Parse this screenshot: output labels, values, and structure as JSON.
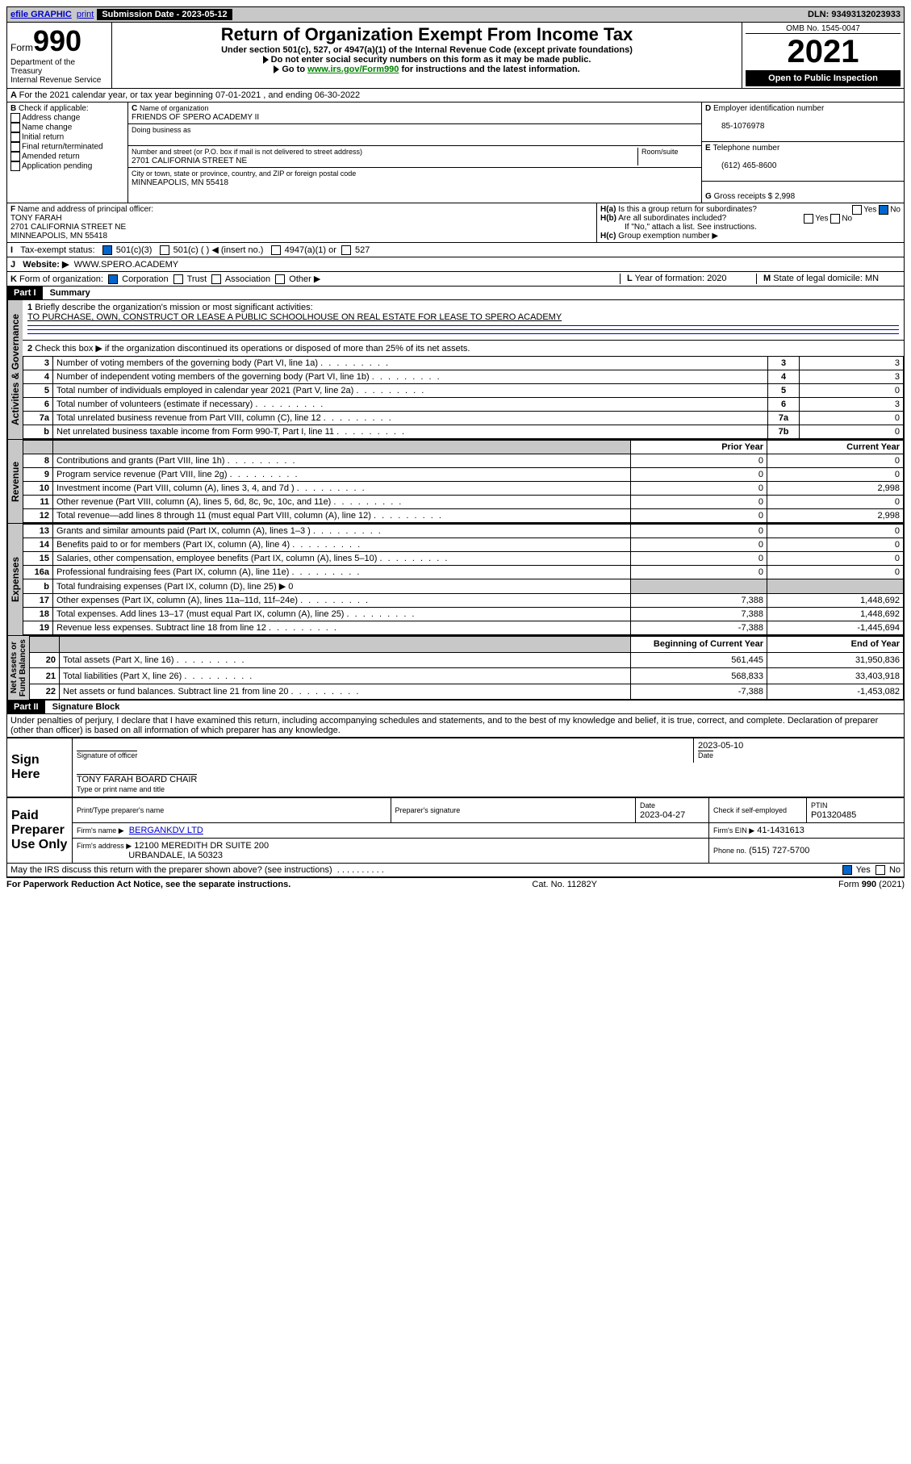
{
  "topbar": {
    "efile": "efile GRAPHIC",
    "print": "print",
    "subdate_label": "Submission Date - 2023-05-12",
    "dln_label": "DLN: 93493132023933"
  },
  "header": {
    "form": "990",
    "form_prefix": "Form",
    "title": "Return of Organization Exempt From Income Tax",
    "subtitle": "Under section 501(c), 527, or 4947(a)(1) of the Internal Revenue Code (except private foundations)",
    "note1": "Do not enter social security numbers on this form as it may be made public.",
    "note2_pre": "Go to ",
    "note2_link": "www.irs.gov/Form990",
    "note2_post": " for instructions and the latest information.",
    "dept": "Department of the Treasury\nInternal Revenue Service",
    "omb": "OMB No. 1545-0047",
    "year": "2021",
    "open": "Open to Public Inspection"
  },
  "A": {
    "text": "For the 2021 calendar year, or tax year beginning 07-01-2021   , and ending 06-30-2022"
  },
  "B": {
    "label": "Check if applicable:",
    "opts": [
      "Address change",
      "Name change",
      "Initial return",
      "Final return/terminated",
      "Amended return",
      "Application pending"
    ]
  },
  "C": {
    "name_label": "Name of organization",
    "name": "FRIENDS OF SPERO ACADEMY II",
    "dba_label": "Doing business as",
    "addr_label": "Number and street (or P.O. box if mail is not delivered to street address)",
    "room_label": "Room/suite",
    "addr": "2701 CALIFORNIA STREET NE",
    "city_label": "City or town, state or province, country, and ZIP or foreign postal code",
    "city": "MINNEAPOLIS, MN  55418"
  },
  "D": {
    "label": "Employer identification number",
    "val": "85-1076978"
  },
  "E": {
    "label": "Telephone number",
    "val": "(612) 465-8600"
  },
  "G": {
    "label": "Gross receipts $",
    "val": "2,998"
  },
  "F": {
    "label": "Name and address of principal officer:",
    "name": "TONY FARAH",
    "addr1": "2701 CALIFORNIA STREET NE",
    "addr2": "MINNEAPOLIS, MN  55418"
  },
  "H": {
    "a": "Is this a group return for subordinates?",
    "b": "Are all subordinates included?",
    "b2": "If \"No,\" attach a list. See instructions.",
    "c": "Group exemption number ▶"
  },
  "I": {
    "label": "Tax-exempt status:",
    "o1": "501(c)(3)",
    "o2": "501(c) (  ) ◀ (insert no.)",
    "o3": "4947(a)(1) or",
    "o4": "527"
  },
  "J": {
    "label": "Website: ▶",
    "val": "WWW.SPERO.ACADEMY"
  },
  "K": {
    "label": "Form of organization:",
    "o1": "Corporation",
    "o2": "Trust",
    "o3": "Association",
    "o4": "Other ▶"
  },
  "L": {
    "label": "Year of formation:",
    "val": "2020"
  },
  "M": {
    "label": "State of legal domicile:",
    "val": "MN"
  },
  "part1": {
    "title": "Summary",
    "q1": "Briefly describe the organization's mission or most significant activities:",
    "a1": "TO PURCHASE, OWN, CONSTRUCT OR LEASE A PUBLIC SCHOOLHOUSE ON REAL ESTATE FOR LEASE TO SPERO ACADEMY",
    "q2": "Check this box ▶        if the organization discontinued its operations or disposed of more than 25% of its net assets.",
    "rows_top": [
      {
        "n": "3",
        "t": "Number of voting members of the governing body (Part VI, line 1a)",
        "box": "3",
        "v": "3"
      },
      {
        "n": "4",
        "t": "Number of independent voting members of the governing body (Part VI, line 1b)",
        "box": "4",
        "v": "3"
      },
      {
        "n": "5",
        "t": "Total number of individuals employed in calendar year 2021 (Part V, line 2a)",
        "box": "5",
        "v": "0"
      },
      {
        "n": "6",
        "t": "Total number of volunteers (estimate if necessary)",
        "box": "6",
        "v": "3"
      },
      {
        "n": "7a",
        "t": "Total unrelated business revenue from Part VIII, column (C), line 12",
        "box": "7a",
        "v": "0"
      },
      {
        "n": "b",
        "t": "Net unrelated business taxable income from Form 990-T, Part I, line 11",
        "box": "7b",
        "v": "0"
      }
    ],
    "col_prior": "Prior Year",
    "col_current": "Current Year",
    "rev_rows": [
      {
        "n": "8",
        "t": "Contributions and grants (Part VIII, line 1h)",
        "p": "0",
        "c": "0"
      },
      {
        "n": "9",
        "t": "Program service revenue (Part VIII, line 2g)",
        "p": "0",
        "c": "0"
      },
      {
        "n": "10",
        "t": "Investment income (Part VIII, column (A), lines 3, 4, and 7d )",
        "p": "0",
        "c": "2,998"
      },
      {
        "n": "11",
        "t": "Other revenue (Part VIII, column (A), lines 5, 6d, 8c, 9c, 10c, and 11e)",
        "p": "0",
        "c": "0"
      },
      {
        "n": "12",
        "t": "Total revenue—add lines 8 through 11 (must equal Part VIII, column (A), line 12)",
        "p": "0",
        "c": "2,998"
      }
    ],
    "exp_rows": [
      {
        "n": "13",
        "t": "Grants and similar amounts paid (Part IX, column (A), lines 1–3 )",
        "p": "0",
        "c": "0"
      },
      {
        "n": "14",
        "t": "Benefits paid to or for members (Part IX, column (A), line 4)",
        "p": "0",
        "c": "0"
      },
      {
        "n": "15",
        "t": "Salaries, other compensation, employee benefits (Part IX, column (A), lines 5–10)",
        "p": "0",
        "c": "0"
      },
      {
        "n": "16a",
        "t": "Professional fundraising fees (Part IX, column (A), line 11e)",
        "p": "0",
        "c": "0"
      },
      {
        "n": "b",
        "t": "Total fundraising expenses (Part IX, column (D), line 25) ▶ 0",
        "p": "",
        "c": "",
        "gray": true
      },
      {
        "n": "17",
        "t": "Other expenses (Part IX, column (A), lines 11a–11d, 11f–24e)",
        "p": "7,388",
        "c": "1,448,692"
      },
      {
        "n": "18",
        "t": "Total expenses. Add lines 13–17 (must equal Part IX, column (A), line 25)",
        "p": "7,388",
        "c": "1,448,692"
      },
      {
        "n": "19",
        "t": "Revenue less expenses. Subtract line 18 from line 12",
        "p": "-7,388",
        "c": "-1,445,694"
      }
    ],
    "col_begin": "Beginning of Current Year",
    "col_end": "End of Year",
    "net_rows": [
      {
        "n": "20",
        "t": "Total assets (Part X, line 16)",
        "p": "561,445",
        "c": "31,950,836"
      },
      {
        "n": "21",
        "t": "Total liabilities (Part X, line 26)",
        "p": "568,833",
        "c": "33,403,918"
      },
      {
        "n": "22",
        "t": "Net assets or fund balances. Subtract line 21 from line 20",
        "p": "-7,388",
        "c": "-1,453,082"
      }
    ]
  },
  "side": {
    "ag": "Activities & Governance",
    "rev": "Revenue",
    "exp": "Expenses",
    "net": "Net Assets or\nFund Balances"
  },
  "part2": {
    "title": "Signature Block",
    "decl": "Under penalties of perjury, I declare that I have examined this return, including accompanying schedules and statements, and to the best of my knowledge and belief, it is true, correct, and complete. Declaration of preparer (other than officer) is based on all information of which preparer has any knowledge.",
    "sign_here": "Sign Here",
    "sig_officer": "Signature of officer",
    "sig_date": "2023-05-10",
    "date_label": "Date",
    "officer_name": "TONY FARAH  BOARD CHAIR",
    "officer_sub": "Type or print name and title",
    "paid": "Paid Preparer Use Only",
    "prep_name_h": "Print/Type preparer's name",
    "prep_sig_h": "Preparer's signature",
    "prep_date_h": "Date",
    "prep_date": "2023-04-27",
    "check_self": "Check        if self-employed",
    "ptin_h": "PTIN",
    "ptin": "P01320485",
    "firm_name_h": "Firm's name   ▶",
    "firm_name": "BERGANKDV LTD",
    "firm_ein_h": "Firm's EIN ▶",
    "firm_ein": "41-1431613",
    "firm_addr_h": "Firm's address ▶",
    "firm_addr1": "12100 MEREDITH DR SUITE 200",
    "firm_addr2": "URBANDALE, IA  50323",
    "phone_h": "Phone no.",
    "phone": "(515) 727-5700",
    "discuss": "May the IRS discuss this return with the preparer shown above? (see instructions)",
    "yes": "Yes",
    "no": "No"
  },
  "footer": {
    "l": "For Paperwork Reduction Act Notice, see the separate instructions.",
    "m": "Cat. No. 11282Y",
    "r": "Form 990 (2021)"
  }
}
